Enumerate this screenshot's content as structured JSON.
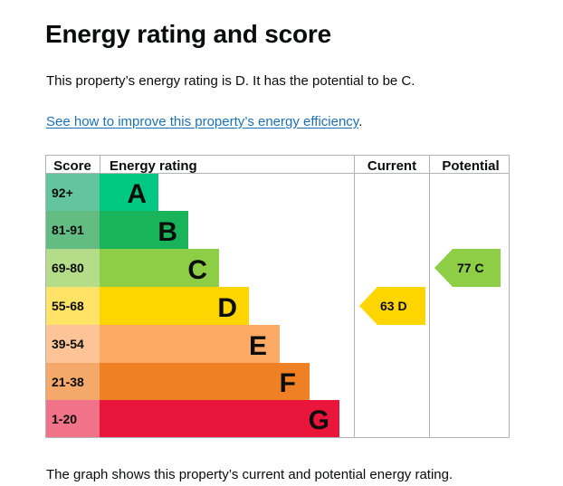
{
  "page": {
    "title": "Energy rating and score",
    "intro": "This property’s energy rating is D. It has the potential to be C.",
    "link_text": "See how to improve this property’s energy efficiency",
    "link_suffix": ".",
    "footer": "The graph shows this property’s current and potential energy rating."
  },
  "chart": {
    "headers": {
      "score": "Score",
      "rating": "Energy rating",
      "current": "Current",
      "potential": "Potential"
    },
    "bands": [
      {
        "band": "A",
        "score": "92+",
        "color": "#00c781",
        "score_color": "#63c5a0"
      },
      {
        "band": "B",
        "score": "81-91",
        "color": "#19b459",
        "score_color": "#63bd82"
      },
      {
        "band": "C",
        "score": "69-80",
        "color": "#8dce46",
        "score_color": "#b5dd89"
      },
      {
        "band": "D",
        "score": "55-68",
        "color": "#ffd500",
        "score_color": "#ffe366"
      },
      {
        "band": "E",
        "score": "39-54",
        "color": "#fcaa65",
        "score_color": "#fdc597"
      },
      {
        "band": "F",
        "score": "21-38",
        "color": "#ef8023",
        "score_color": "#f4a96b"
      },
      {
        "band": "G",
        "score": "1-20",
        "color": "#e9153b",
        "score_color": "#f07389"
      }
    ],
    "current": {
      "score": 63,
      "band": "D",
      "label": "63 D",
      "color": "#ffd500"
    },
    "potential": {
      "score": 77,
      "band": "C",
      "label": "77 C",
      "color": "#8dce46"
    }
  }
}
